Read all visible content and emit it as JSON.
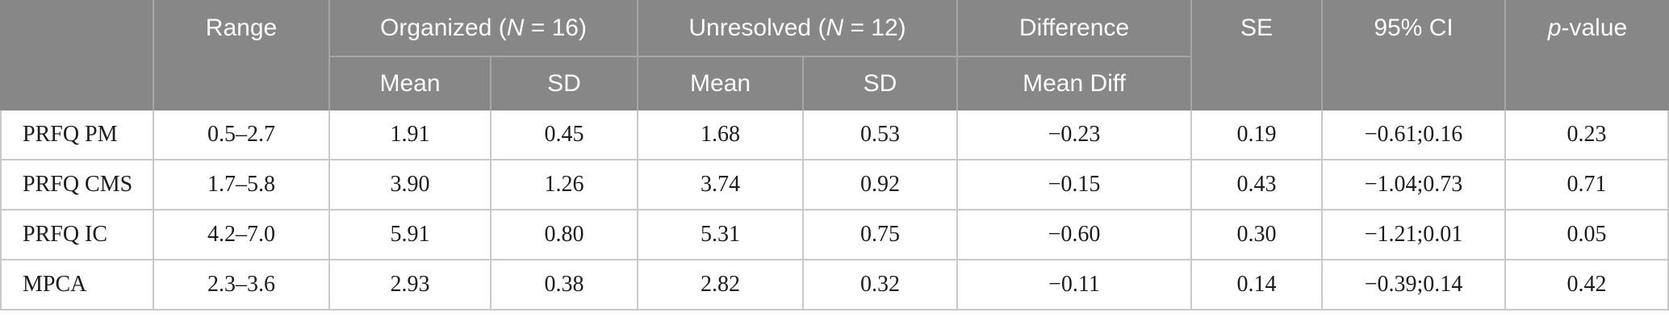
{
  "table_title": "Group comparison statistics table",
  "colors": {
    "header_background": "#878787",
    "header_divider": "#a6a6a6",
    "header_text": "#fbfbfb",
    "body_divider": "#c9c9c9",
    "body_text": "#1c1c1c"
  },
  "header": {
    "range": "Range",
    "organized": {
      "prefix": "Organized (",
      "italic_n": "N",
      "suffix": " = 16)"
    },
    "unresolved": {
      "prefix": "Unresolved (",
      "italic_n": "N",
      "suffix": " = 12)"
    },
    "difference": "Difference",
    "se": "SE",
    "ci_95": "95% CI",
    "p_value": {
      "italic_p": "p",
      "suffix": "-value"
    },
    "sub": {
      "mean": "Mean",
      "sd": "SD",
      "mean_diff": "Mean Diff"
    }
  },
  "rows": [
    {
      "label": "PRFQ PM",
      "range": "0.5–2.7",
      "organized_mean": "1.91",
      "organized_sd": "0.45",
      "unresolved_mean": "1.68",
      "unresolved_sd": "0.53",
      "mean_diff": "−0.23",
      "se": "0.19",
      "ci_95": "−0.61;0.16",
      "p_value": "0.23"
    },
    {
      "label": "PRFQ CMS",
      "range": "1.7–5.8",
      "organized_mean": "3.90",
      "organized_sd": "1.26",
      "unresolved_mean": "3.74",
      "unresolved_sd": "0.92",
      "mean_diff": "−0.15",
      "se": "0.43",
      "ci_95": "−1.04;0.73",
      "p_value": "0.71"
    },
    {
      "label": "PRFQ IC",
      "range": "4.2–7.0",
      "organized_mean": "5.91",
      "organized_sd": "0.80",
      "unresolved_mean": "5.31",
      "unresolved_sd": "0.75",
      "mean_diff": "−0.60",
      "se": "0.30",
      "ci_95": "−1.21;0.01",
      "p_value": "0.05"
    },
    {
      "label": "MPCA",
      "range": "2.3–3.6",
      "organized_mean": "2.93",
      "organized_sd": "0.38",
      "unresolved_mean": "2.82",
      "unresolved_sd": "0.32",
      "mean_diff": "−0.11",
      "se": "0.14",
      "ci_95": "−0.39;0.14",
      "p_value": "0.42"
    }
  ]
}
